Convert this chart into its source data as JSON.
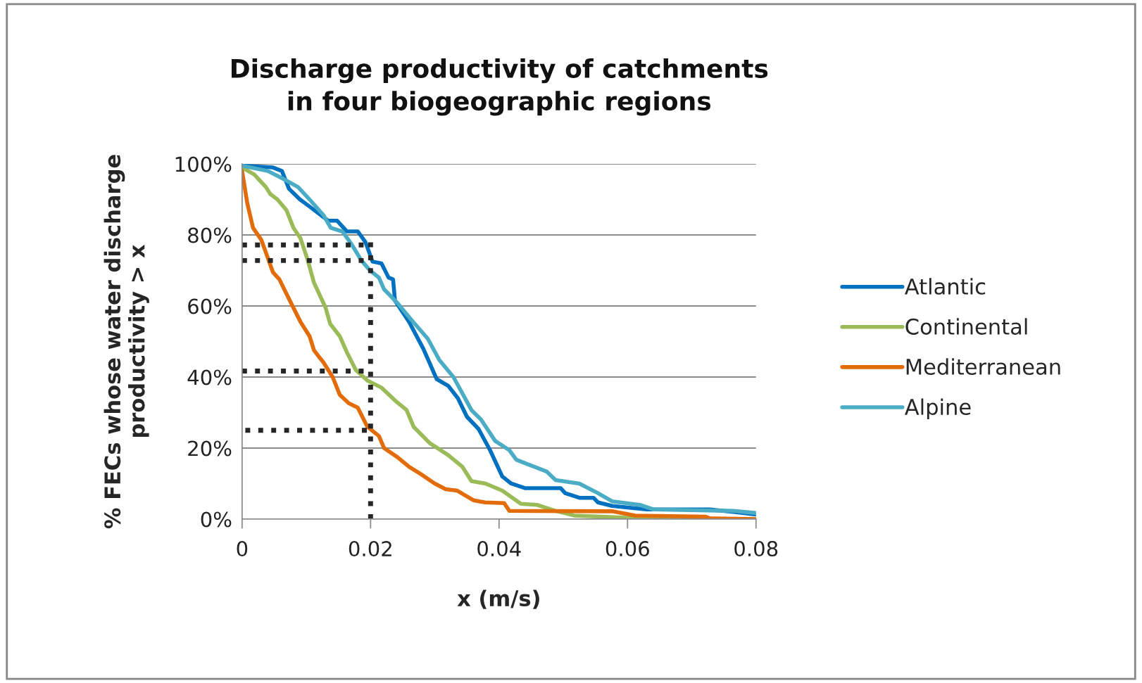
{
  "chart_data": {
    "type": "line",
    "title": "Discharge productivity of catchments\nin four biogeographic regions",
    "xlabel": "x (m/s)",
    "ylabel": "% FECs whose water discharge\nproductivity > x",
    "xlim": [
      0,
      0.08
    ],
    "xticks": [
      0,
      0.02,
      0.04,
      0.06,
      0.08
    ],
    "ylim": [
      0,
      100
    ],
    "yticks": [
      {
        "value": 0,
        "label": "0%"
      },
      {
        "value": 20,
        "label": "20%"
      },
      {
        "value": 40,
        "label": "40%"
      },
      {
        "value": 60,
        "label": "60%"
      },
      {
        "value": 80,
        "label": "80%"
      },
      {
        "value": 100,
        "label": "100%"
      }
    ],
    "grid": "y",
    "legend": "right",
    "line_style": "solid",
    "series": [
      {
        "name": "Atlantic",
        "color": "#0070c0",
        "x": [
          0,
          0.0048,
          0.0062,
          0.0073,
          0.009,
          0.0105,
          0.0134,
          0.0148,
          0.0163,
          0.018,
          0.0192,
          0.0203,
          0.0217,
          0.0228,
          0.0235,
          0.0238,
          0.026,
          0.0282,
          0.0303,
          0.0321,
          0.0336,
          0.035,
          0.0368,
          0.0386,
          0.0405,
          0.0419,
          0.0441,
          0.0496,
          0.0503,
          0.0525,
          0.0547,
          0.0554,
          0.0576,
          0.063,
          0.0728,
          0.0765,
          0.08
        ],
        "values": [
          99.5,
          99,
          98,
          93,
          90,
          88,
          84,
          84,
          81,
          81,
          78,
          72.5,
          72,
          68,
          67.5,
          61.5,
          55.5,
          48,
          39.4,
          37.5,
          34,
          28.8,
          25.4,
          19.4,
          12,
          10,
          8.7,
          8.7,
          7.3,
          6,
          6,
          4.7,
          3.7,
          2.7,
          2.7,
          2,
          1.3
        ]
      },
      {
        "name": "Continental",
        "color": "#9bbb59",
        "x": [
          0,
          0.0019,
          0.0037,
          0.0044,
          0.0055,
          0.0069,
          0.008,
          0.0091,
          0.0102,
          0.0112,
          0.013,
          0.0137,
          0.0152,
          0.0163,
          0.0177,
          0.0195,
          0.0217,
          0.0238,
          0.0256,
          0.0267,
          0.0292,
          0.0321,
          0.0343,
          0.0357,
          0.0379,
          0.0405,
          0.0434,
          0.0459,
          0.0488,
          0.0517,
          0.0612,
          0.0728,
          0.08
        ],
        "values": [
          99,
          97,
          93.5,
          91.5,
          90,
          87,
          82,
          79,
          73,
          66.5,
          59.5,
          55,
          51.5,
          47,
          42,
          39,
          37,
          33.4,
          30.7,
          26,
          21.4,
          18,
          14.7,
          10.7,
          10,
          8,
          4.3,
          4,
          2.3,
          1,
          0.3,
          0,
          0
        ]
      },
      {
        "name": "Mediterranean",
        "color": "#e36c0a",
        "x": [
          0,
          0.0008,
          0.0017,
          0.003,
          0.0048,
          0.0058,
          0.0073,
          0.0091,
          0.0105,
          0.0112,
          0.0127,
          0.0141,
          0.0152,
          0.0166,
          0.018,
          0.0195,
          0.0213,
          0.0221,
          0.0242,
          0.026,
          0.0278,
          0.03,
          0.0317,
          0.0335,
          0.036,
          0.0378,
          0.0408,
          0.0416,
          0.0576,
          0.0612,
          0.0721,
          0.0728,
          0.08
        ],
        "values": [
          98,
          89,
          82,
          78.6,
          69.5,
          67.5,
          62,
          55.5,
          51.5,
          47.5,
          44,
          40,
          35,
          32.6,
          31.4,
          26,
          23.4,
          20,
          17.4,
          14.7,
          12.7,
          10,
          8.4,
          8,
          5.3,
          4.7,
          4.5,
          2.3,
          2.2,
          1,
          0.7,
          0.2,
          0
        ]
      },
      {
        "name": "Alpine",
        "color": "#4bacc6",
        "x": [
          0,
          0.004,
          0.0062,
          0.0087,
          0.0105,
          0.0127,
          0.0138,
          0.0156,
          0.017,
          0.0185,
          0.0199,
          0.0213,
          0.0221,
          0.0242,
          0.0264,
          0.0289,
          0.0307,
          0.0329,
          0.0357,
          0.0372,
          0.0394,
          0.0416,
          0.0427,
          0.0445,
          0.0474,
          0.0488,
          0.0525,
          0.0554,
          0.0576,
          0.0619,
          0.0641,
          0.0765,
          0.08
        ],
        "values": [
          99.5,
          98,
          96,
          93.5,
          90,
          85.5,
          82,
          81,
          77.5,
          73,
          70,
          68,
          64.7,
          60.8,
          56,
          50.8,
          44.8,
          40,
          30.7,
          28,
          22,
          19.4,
          16.7,
          15.4,
          13.4,
          11,
          10,
          7.3,
          5,
          4,
          2.7,
          2.3,
          1.7
        ]
      },
      {
        "color": "#262626",
        "line_style": "dotted",
        "x": [
          0.02,
          0.02
        ],
        "values": [
          0,
          78
        ]
      },
      {
        "color": "#262626",
        "line_style": "dotted",
        "x": [
          0,
          0.02
        ],
        "values": [
          77.2,
          77.2
        ]
      },
      {
        "color": "#262626",
        "line_style": "dotted",
        "x": [
          0,
          0.02
        ],
        "values": [
          72.8,
          72.8
        ]
      },
      {
        "color": "#262626",
        "line_style": "dotted",
        "x": [
          0,
          0.02
        ],
        "values": [
          41.7,
          41.7
        ]
      },
      {
        "color": "#262626",
        "line_style": "dotted",
        "x": [
          0.0005,
          0.02
        ],
        "values": [
          25,
          25
        ]
      }
    ]
  }
}
